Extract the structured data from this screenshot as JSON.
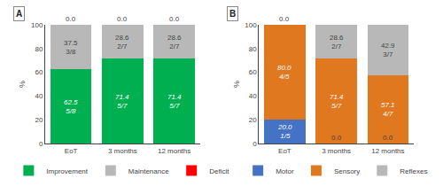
{
  "chart_data": [
    {
      "type": "bar",
      "title": "A",
      "stacked": true,
      "categories": [
        "EoT",
        "3 months",
        "12 months"
      ],
      "series": [
        {
          "name": "Improvement",
          "color": "#00b050",
          "values": [
            62.5,
            71.4,
            71.4
          ],
          "value_labels": [
            "62.5\n5/8",
            "71.4\n5/7",
            "71.4\n5/7"
          ]
        },
        {
          "name": "Maintenance",
          "color": "#b8b8b8",
          "values": [
            37.5,
            28.6,
            28.6
          ],
          "value_labels": [
            "37.5\n3/8",
            "28.6\n2/7",
            "28.6\n2/7"
          ]
        },
        {
          "name": "Deficit",
          "color": "#ff0000",
          "values": [
            0.0,
            0.0,
            0.0
          ],
          "value_labels": [
            "0.0",
            "0.0",
            "0.0"
          ]
        }
      ],
      "ylabel": "%",
      "ylim": [
        0,
        100
      ],
      "yticks": [
        0,
        20,
        40,
        60,
        80,
        100
      ],
      "grid": false,
      "legend": "bottom",
      "data_labels": true
    },
    {
      "type": "bar",
      "title": "B",
      "stacked": true,
      "categories": [
        "EoT",
        "3 months",
        "12 months"
      ],
      "series": [
        {
          "name": "Motor",
          "color": "#4472c4",
          "values": [
            20.0,
            0.0,
            0.0
          ],
          "value_labels": [
            "20.0\n1/5",
            "0.0",
            "0.0"
          ]
        },
        {
          "name": "Sensory",
          "color": "#e07820",
          "values": [
            80.0,
            71.4,
            57.1
          ],
          "value_labels": [
            "80.0\n4/5",
            "71.4\n5/7",
            "57.1\n4/7"
          ]
        },
        {
          "name": "Reflexes",
          "color": "#b8b8b8",
          "values": [
            0.0,
            28.6,
            42.9
          ],
          "value_labels": [
            "0.0",
            "28.6\n2/7",
            "42.9\n3/7"
          ]
        }
      ],
      "ylabel": "%",
      "ylim": [
        0,
        100
      ],
      "yticks": [
        0,
        20,
        40,
        60,
        80,
        100
      ],
      "grid": false,
      "legend": "bottom",
      "data_labels": true
    }
  ]
}
